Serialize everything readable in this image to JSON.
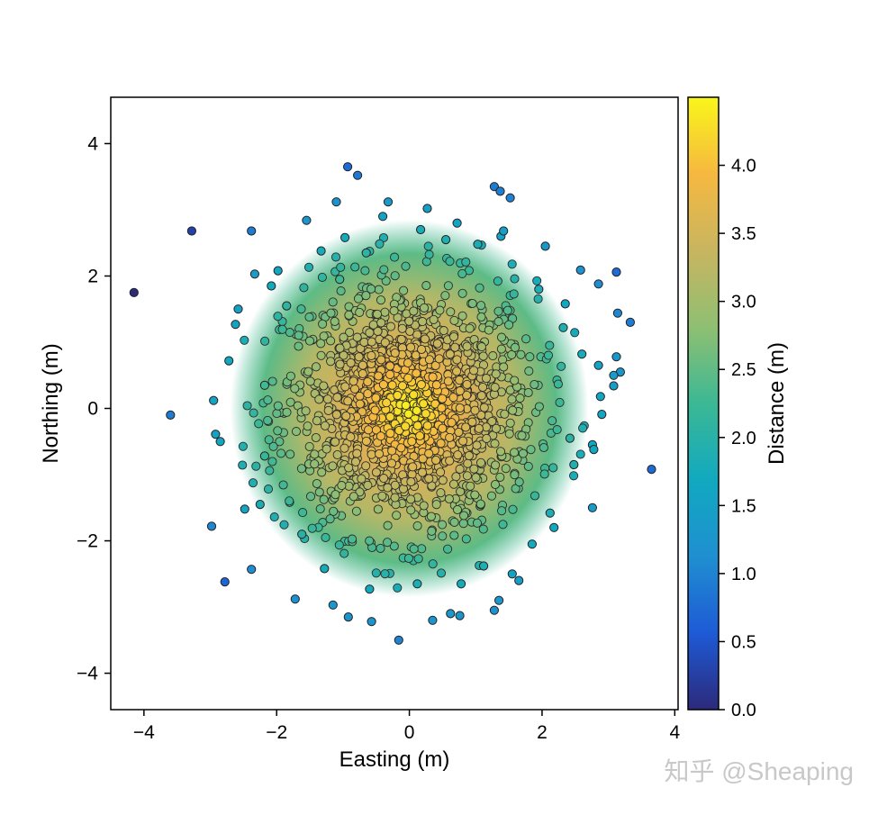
{
  "chart_data": {
    "type": "scatter",
    "title": "",
    "xlabel": "Easting (m)",
    "ylabel": "Northing (m)",
    "xlim": [
      -4.5,
      4.05
    ],
    "ylim": [
      -4.55,
      4.7
    ],
    "xticks": [
      -4,
      -2,
      0,
      2,
      4
    ],
    "yticks": [
      -4,
      -2,
      0,
      2,
      4
    ],
    "xtick_labels": [
      "−4",
      "−2",
      "0",
      "2",
      "4"
    ],
    "ytick_labels": [
      "−4",
      "−2",
      "0",
      "2",
      "4"
    ],
    "grid": false,
    "colorbar": {
      "label": "Distance (m)",
      "range": [
        0.0,
        4.5
      ],
      "ticks": [
        0.0,
        0.5,
        1.0,
        1.5,
        2.0,
        2.5,
        3.0,
        3.5,
        4.0
      ],
      "tick_labels": [
        "0.0",
        "0.5",
        "1.0",
        "1.5",
        "2.0",
        "2.5",
        "3.0",
        "3.5",
        "4.0"
      ],
      "colormap": [
        "#2c2a7a",
        "#1e5ad6",
        "#1f8fd0",
        "#11a9c0",
        "#3cb894",
        "#8fbf72",
        "#c8b560",
        "#f6b840",
        "#f9f61a"
      ]
    },
    "series": [
      {
        "color_value": "4.5 - distance from origin",
        "marker_edge_color": "#222222",
        "points": [
          [
            -4.15,
            1.75
          ],
          [
            -3.28,
            2.68
          ],
          [
            -3.6,
            -0.1
          ],
          [
            -2.98,
            -1.78
          ],
          [
            3.65,
            -0.92
          ],
          [
            -0.93,
            3.65
          ],
          [
            -0.78,
            3.52
          ],
          [
            1.28,
            3.35
          ],
          [
            1.37,
            3.28
          ],
          [
            1.52,
            3.18
          ],
          [
            -1.1,
            3.12
          ],
          [
            -0.32,
            3.12
          ],
          [
            0.27,
            3.02
          ],
          [
            -0.4,
            2.9
          ],
          [
            -1.55,
            2.84
          ],
          [
            -2.38,
            2.68
          ],
          [
            0.72,
            2.8
          ],
          [
            2.05,
            2.45
          ],
          [
            2.58,
            2.09
          ],
          [
            3.12,
            2.06
          ],
          [
            2.85,
            1.88
          ],
          [
            3.33,
            1.3
          ],
          [
            3.14,
            1.44
          ],
          [
            3.18,
            0.55
          ],
          [
            3.08,
            0.5
          ],
          [
            3.12,
            0.78
          ],
          [
            2.85,
            0.65
          ],
          [
            3.08,
            0.34
          ],
          [
            2.88,
            0.18
          ],
          [
            2.9,
            -0.09
          ],
          [
            2.76,
            -0.55
          ],
          [
            2.78,
            -0.62
          ],
          [
            2.76,
            -1.5
          ],
          [
            2.18,
            -1.8
          ],
          [
            1.65,
            -2.6
          ],
          [
            1.55,
            -2.5
          ],
          [
            1.35,
            -2.9
          ],
          [
            1.28,
            -3.05
          ],
          [
            0.78,
            -2.65
          ],
          [
            0.76,
            -3.13
          ],
          [
            0.62,
            -3.1
          ],
          [
            0.35,
            -3.2
          ],
          [
            -0.16,
            -3.5
          ],
          [
            -0.57,
            -3.22
          ],
          [
            -0.92,
            -3.15
          ],
          [
            -1.15,
            -2.97
          ],
          [
            -1.72,
            -2.88
          ],
          [
            -2.38,
            -2.43
          ],
          [
            -2.78,
            -2.62
          ],
          [
            -2.62,
            1.27
          ],
          [
            -2.95,
            0.12
          ],
          [
            -2.92,
            -0.39
          ],
          [
            -2.85,
            -0.5
          ],
          [
            -2.48,
            -1.52
          ],
          [
            -2.25,
            -1.45
          ],
          [
            -2.72,
            0.72
          ],
          [
            -2.58,
            1.5
          ],
          [
            -2.33,
            2.03
          ],
          [
            -1.98,
            2.08
          ],
          [
            -2.08,
            1.85
          ],
          [
            -1.33,
            2.38
          ],
          [
            -0.97,
            2.58
          ],
          [
            -0.65,
            2.35
          ],
          [
            0.17,
            2.7
          ],
          [
            0.55,
            2.55
          ],
          [
            1.03,
            2.48
          ],
          [
            1.38,
            2.6
          ],
          [
            1.42,
            2.68
          ],
          [
            1.95,
            1.8
          ],
          [
            2.35,
            1.58
          ],
          [
            2.32,
            1.22
          ],
          [
            2.6,
            0.82
          ],
          [
            2.42,
            -0.45
          ],
          [
            2.48,
            -0.85
          ],
          [
            2.12,
            -1.58
          ],
          [
            1.85,
            -2.05
          ],
          [
            1.12,
            -2.38
          ],
          [
            0.12,
            -2.65
          ],
          [
            -0.6,
            -2.73
          ],
          [
            -1.28,
            -2.42
          ],
          [
            -1.62,
            -1.9
          ],
          [
            -2.18,
            -0.72
          ],
          [
            -2.18,
            0.35
          ],
          [
            -1.85,
            1.55
          ],
          [
            -1.05,
            1.95
          ]
        ]
      }
    ],
    "watermark": "知乎 @Sheaping"
  }
}
